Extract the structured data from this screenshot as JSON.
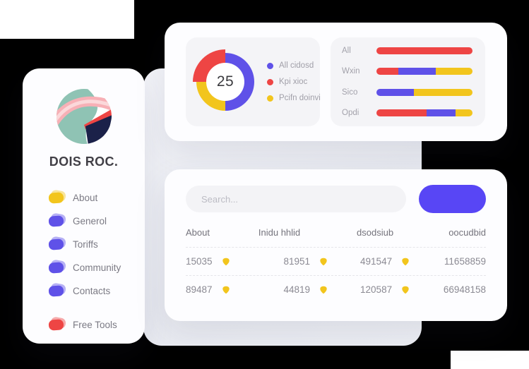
{
  "colors": {
    "accent_blue": "#5f51e8",
    "button_blue": "#5846f5",
    "red": "#ee4544",
    "yellow": "#f2c51d",
    "logo_teal": "#8fc3b4",
    "logo_navy": "#1b2149",
    "logo_pink": "#f7b0b6",
    "logo_pink_light": "#fbd8da"
  },
  "sidebar": {
    "title": "DOIS ROC.",
    "items": [
      {
        "label": "About",
        "color": "#f2c51d",
        "spacer_before": false
      },
      {
        "label": "Generol",
        "color": "#5f51e8",
        "spacer_before": false
      },
      {
        "label": "Toriffs",
        "color": "#5f51e8",
        "spacer_before": false
      },
      {
        "label": "Community",
        "color": "#5f51e8",
        "spacer_before": false
      },
      {
        "label": "Contacts",
        "color": "#5f51e8",
        "spacer_before": false
      },
      {
        "label": "Free Tools",
        "color": "#ee4544",
        "spacer_before": true
      }
    ]
  },
  "chart_data": [
    {
      "type": "pie",
      "variant": "donut",
      "center_label": "25",
      "legend_position": "right",
      "slices": [
        {
          "label": "All cidosd",
          "color": "#5f51e8",
          "pct": 50,
          "exploded": false
        },
        {
          "label": "Pcifn doinvi",
          "color": "#f2c51d",
          "pct": 25,
          "exploded": false
        },
        {
          "label": "Kpi xioc",
          "color": "#ee4544",
          "pct": 25,
          "exploded": true
        }
      ],
      "legend": [
        {
          "label": "All cidosd",
          "color": "#5f51e8"
        },
        {
          "label": "Kpi xioc",
          "color": "#ee4544"
        },
        {
          "label": "Pcifn doinvi",
          "color": "#f2c51d"
        }
      ]
    },
    {
      "type": "bar",
      "orientation": "horizontal",
      "stacked": true,
      "xlim": [
        0,
        100
      ],
      "categories": [
        "All",
        "Wxin",
        "Sico",
        "Opdi"
      ],
      "series": [
        {
          "name": "red",
          "color": "#ee4544",
          "values": [
            100,
            23,
            0,
            52
          ]
        },
        {
          "name": "blue",
          "color": "#5f51e8",
          "values": [
            0,
            39,
            39,
            30
          ]
        },
        {
          "name": "yellow",
          "color": "#f2c51d",
          "values": [
            0,
            38,
            61,
            18
          ]
        }
      ]
    }
  ],
  "search": {
    "placeholder": "Search..."
  },
  "table": {
    "headers": [
      "About",
      "Inidu hhlid",
      "dsodsiub",
      "oocudbid"
    ],
    "rows": [
      [
        {
          "value": "15035",
          "icon": true
        },
        {
          "value": "81951",
          "icon": true
        },
        {
          "value": "491547",
          "icon": true
        },
        {
          "value": "11658859",
          "icon": false
        }
      ],
      [
        {
          "value": "89487",
          "icon": true
        },
        {
          "value": "44819",
          "icon": true
        },
        {
          "value": "120587",
          "icon": true
        },
        {
          "value": "66948158",
          "icon": false
        }
      ]
    ]
  }
}
